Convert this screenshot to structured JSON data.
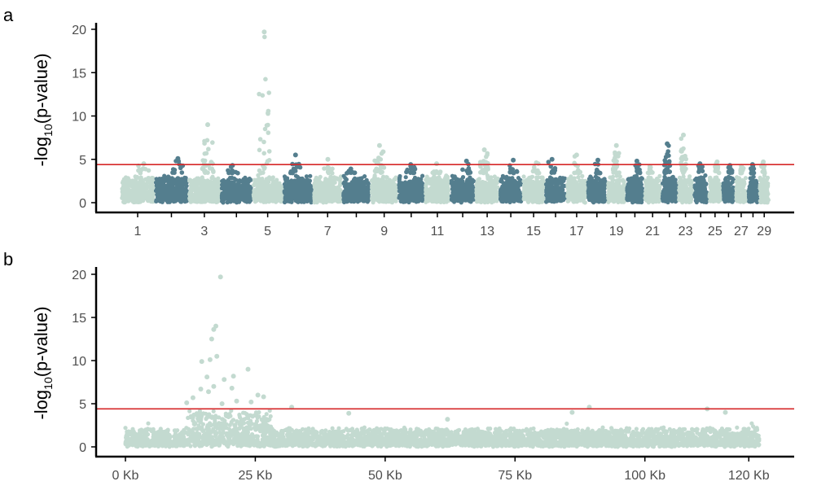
{
  "colors": {
    "light": "#c3dad0",
    "dark": "#547e8e",
    "threshold": "#d62728",
    "axis": "#000000",
    "tick_text": "#4d4d4d"
  },
  "chart_data": [
    {
      "panel_label": "a",
      "type": "scatter",
      "title": "",
      "xlabel": "",
      "ylabel": "-log10(p-value)",
      "ylabel_parts": {
        "prefix": "-log",
        "sub": "10",
        "suffix": "(p-value)"
      },
      "ylim": [
        0,
        20
      ],
      "yticks": [
        0,
        5,
        10,
        15,
        20
      ],
      "threshold": 4.4,
      "x_tick_labels": [
        "1",
        "3",
        "5",
        "7",
        "9",
        "11",
        "13",
        "15",
        "17",
        "19",
        "21",
        "23",
        "25",
        "27",
        "29"
      ],
      "chromosomes": [
        "1",
        "2",
        "3",
        "4",
        "5",
        "6",
        "7",
        "8",
        "9",
        "10",
        "11",
        "12",
        "13",
        "14",
        "15",
        "16",
        "17",
        "18",
        "19",
        "20",
        "21",
        "22",
        "23",
        "24",
        "25",
        "26",
        "27",
        "28",
        "29"
      ],
      "chrom_peaks": [
        4.5,
        5.1,
        9.0,
        4.3,
        19.7,
        5.5,
        5.0,
        3.9,
        6.6,
        4.4,
        4.5,
        4.8,
        6.1,
        4.9,
        4.6,
        5.0,
        5.5,
        4.9,
        6.6,
        4.8,
        4.2,
        6.8,
        7.8,
        4.5,
        4.7,
        4.3,
        4.2,
        4.4,
        4.7
      ],
      "grid": false,
      "legend": "none"
    },
    {
      "panel_label": "b",
      "type": "scatter",
      "title": "",
      "xlabel": "",
      "ylabel": "-log10(p-value)",
      "ylabel_parts": {
        "prefix": "-log",
        "sub": "10",
        "suffix": "(p-value)"
      },
      "xlim_kb": [
        0,
        122
      ],
      "xticks_kb": [
        0,
        25,
        50,
        75,
        100,
        120
      ],
      "x_tick_labels": [
        "0 Kb",
        "25 Kb",
        "50 Kb",
        "75 Kb",
        "100 Kb",
        "120 Kb"
      ],
      "ylim": [
        0,
        20
      ],
      "yticks": [
        0,
        5,
        10,
        15,
        20
      ],
      "threshold": 4.4,
      "highlight_points": [
        {
          "x": 18.3,
          "y": 19.7
        },
        {
          "x": 17.4,
          "y": 14.0
        },
        {
          "x": 17.0,
          "y": 13.6
        },
        {
          "x": 16.6,
          "y": 12.5
        },
        {
          "x": 14.7,
          "y": 9.9
        },
        {
          "x": 17.6,
          "y": 10.5
        },
        {
          "x": 16.3,
          "y": 10.1
        },
        {
          "x": 23.6,
          "y": 9.0
        },
        {
          "x": 20.8,
          "y": 8.2
        },
        {
          "x": 15.7,
          "y": 8.1
        },
        {
          "x": 19.0,
          "y": 7.8
        },
        {
          "x": 17.0,
          "y": 7.0
        },
        {
          "x": 14.5,
          "y": 6.7
        },
        {
          "x": 16.0,
          "y": 6.4
        },
        {
          "x": 13.0,
          "y": 5.7
        },
        {
          "x": 20.5,
          "y": 6.8
        },
        {
          "x": 25.5,
          "y": 6.0
        },
        {
          "x": 24.2,
          "y": 5.2
        },
        {
          "x": 26.6,
          "y": 5.8
        },
        {
          "x": 11.8,
          "y": 5.1
        },
        {
          "x": 18.6,
          "y": 5.0
        },
        {
          "x": 21.4,
          "y": 5.3
        },
        {
          "x": 32.0,
          "y": 4.6
        },
        {
          "x": 86.0,
          "y": 4.0
        },
        {
          "x": 89.3,
          "y": 4.6
        },
        {
          "x": 112.0,
          "y": 4.4
        },
        {
          "x": 115.5,
          "y": 4.0
        },
        {
          "x": 43.0,
          "y": 3.9
        },
        {
          "x": 62.0,
          "y": 3.2
        }
      ],
      "grid": false,
      "legend": "none"
    }
  ]
}
